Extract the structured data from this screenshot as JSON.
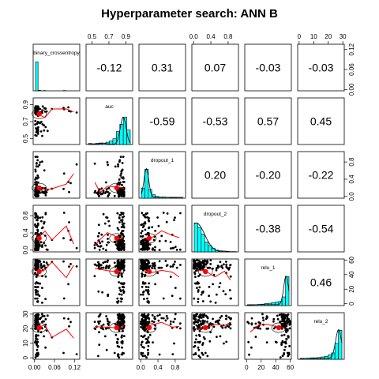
{
  "title": "Hyperparameter search: ANN B",
  "chart_data": {
    "type": "scatter",
    "title": "Hyperparameter search: ANN B",
    "variables": [
      "binary_crossentropy",
      "auc",
      "dropout_1",
      "dropout_2",
      "relu_1",
      "relu_2"
    ],
    "axis_ticks": [
      {
        "ticks": [
          0.0,
          0.06,
          0.12
        ],
        "labels": [
          "0.00",
          "0.06",
          "0.12"
        ]
      },
      {
        "ticks": [
          0.5,
          0.7,
          0.9
        ],
        "labels": [
          "0.5",
          "0.7",
          "0.9"
        ]
      },
      {
        "ticks": [
          0.0,
          0.4,
          0.8
        ],
        "labels": [
          "0.0",
          "0.4",
          "0.8"
        ]
      },
      {
        "ticks": [
          0.0,
          0.4,
          0.8
        ],
        "labels": [
          "0.0",
          "0.4",
          "0.8"
        ]
      },
      {
        "ticks": [
          0,
          20,
          40,
          60
        ],
        "labels": [
          "0",
          "20",
          "40",
          "60"
        ]
      },
      {
        "ticks": [
          0,
          10,
          20,
          30
        ],
        "labels": [
          "0",
          "10",
          "20",
          "30"
        ]
      }
    ],
    "correlations": [
      {
        "row": 0,
        "col": 1,
        "value": "-0.12"
      },
      {
        "row": 0,
        "col": 2,
        "value": "0.31"
      },
      {
        "row": 0,
        "col": 3,
        "value": "0.07"
      },
      {
        "row": 0,
        "col": 4,
        "value": "-0.03"
      },
      {
        "row": 0,
        "col": 5,
        "value": "-0.03"
      },
      {
        "row": 1,
        "col": 2,
        "value": "-0.59"
      },
      {
        "row": 1,
        "col": 3,
        "value": "-0.53"
      },
      {
        "row": 1,
        "col": 4,
        "value": "0.57"
      },
      {
        "row": 1,
        "col": 5,
        "value": "0.45"
      },
      {
        "row": 2,
        "col": 3,
        "value": "0.20"
      },
      {
        "row": 2,
        "col": 4,
        "value": "-0.20"
      },
      {
        "row": 2,
        "col": 5,
        "value": "-0.22"
      },
      {
        "row": 3,
        "col": 4,
        "value": "-0.38"
      },
      {
        "row": 3,
        "col": 5,
        "value": "-0.54"
      },
      {
        "row": 4,
        "col": 5,
        "value": "0.46"
      }
    ],
    "histograms": [
      {
        "variable": "binary_crossentropy",
        "values": [
          1.0,
          0.02,
          0.0,
          0.01,
          0.0,
          0.0,
          0.0,
          0.0,
          0.0,
          0.0,
          0.0,
          0.01
        ]
      },
      {
        "variable": "auc",
        "values": [
          0.04,
          0.02,
          0.02,
          0.03,
          0.05,
          0.08,
          0.12,
          0.2,
          0.45,
          0.7,
          0.95,
          0.5
        ]
      },
      {
        "variable": "dropout_1",
        "values": [
          0.35,
          1.0,
          0.3,
          0.12,
          0.06,
          0.04,
          0.04,
          0.03,
          0.02,
          0.02,
          0.01,
          0.01
        ]
      },
      {
        "variable": "dropout_2",
        "values": [
          1.0,
          0.85,
          0.62,
          0.34,
          0.22,
          0.12,
          0.06,
          0.04,
          0.03,
          0.02,
          0.01,
          0.01
        ]
      },
      {
        "variable": "relu_1",
        "values": [
          0.02,
          0.02,
          0.03,
          0.04,
          0.05,
          0.07,
          0.08,
          0.1,
          0.12,
          0.14,
          0.3,
          1.0
        ]
      },
      {
        "variable": "relu_2",
        "values": [
          0.02,
          0.03,
          0.04,
          0.05,
          0.05,
          0.06,
          0.08,
          0.1,
          0.15,
          0.22,
          0.55,
          1.0
        ]
      }
    ]
  }
}
